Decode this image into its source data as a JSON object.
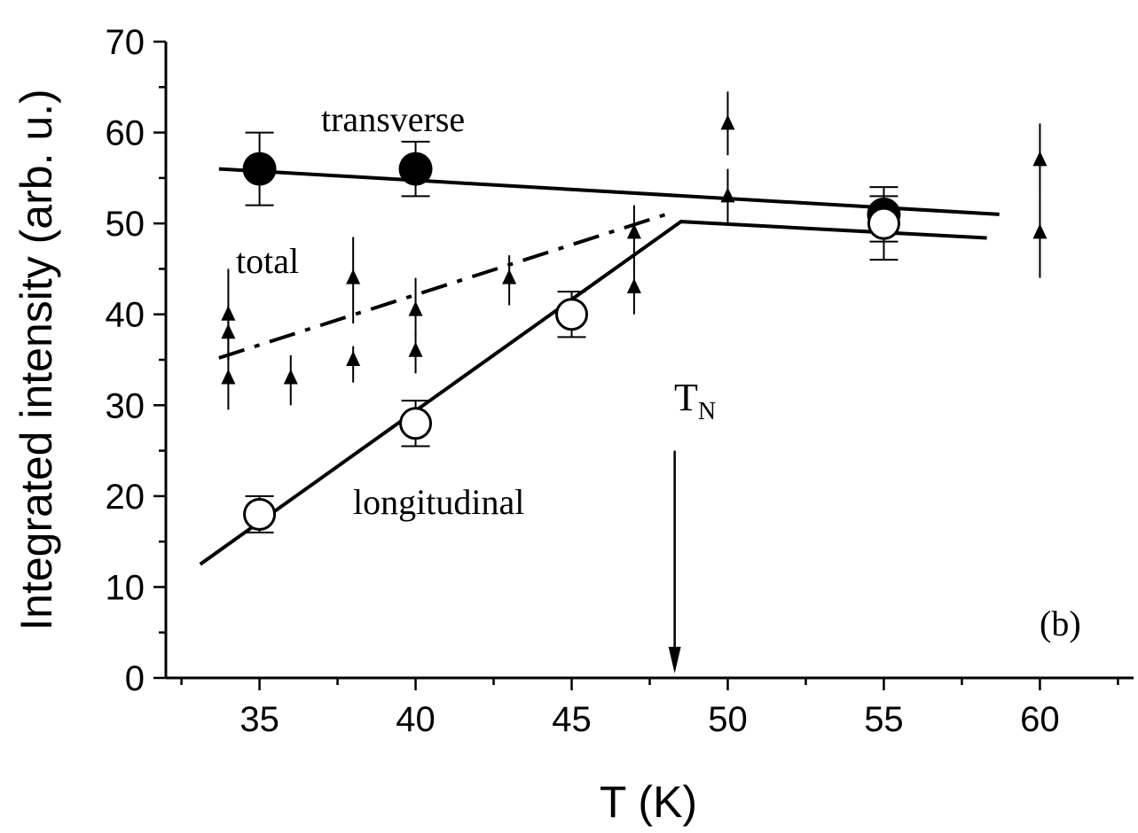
{
  "chart_data": {
    "type": "scatter",
    "xlabel": "T (K)",
    "ylabel": "Integrated intensity (arb. u.)",
    "xlim": [
      32,
      63
    ],
    "ylim": [
      0,
      70
    ],
    "x_ticks": [
      35,
      40,
      45,
      50,
      55,
      60
    ],
    "y_ticks": [
      0,
      10,
      20,
      30,
      40,
      50,
      60,
      70
    ],
    "panel_label": "(b)",
    "annotations": {
      "transverse": "transverse",
      "total": "total",
      "longitudinal": "longitudinal",
      "tn_main": "T",
      "tn_sub": "N"
    },
    "tn_arrow": {
      "x": 48.3,
      "y_from": 25,
      "y_to": 0.5
    },
    "series": [
      {
        "marker": "filled-circle",
        "points": [
          {
            "x": 35,
            "y": 56,
            "err_low": 52,
            "err_high": 60
          },
          {
            "x": 40,
            "y": 56,
            "err_low": 53,
            "err_high": 59
          },
          {
            "x": 55,
            "y": 51,
            "err_low": 48,
            "err_high": 54
          }
        ]
      },
      {
        "marker": "open-circle",
        "points": [
          {
            "x": 35,
            "y": 18,
            "err_low": 16,
            "err_high": 20
          },
          {
            "x": 40,
            "y": 28,
            "err_low": 25.5,
            "err_high": 30.5
          },
          {
            "x": 45,
            "y": 40,
            "err_low": 37.5,
            "err_high": 42.5
          },
          {
            "x": 55,
            "y": 50,
            "err_low": 46,
            "err_high": 53
          }
        ]
      },
      {
        "marker": "filled-triangle",
        "points": [
          {
            "x": 34,
            "y": 33,
            "err_low": 29.5,
            "err_high": 36
          },
          {
            "x": 34,
            "y": 38,
            "err_low": 35,
            "err_high": 41
          },
          {
            "x": 34,
            "y": 40,
            "err_low": 35,
            "err_high": 45
          },
          {
            "x": 36,
            "y": 33,
            "err_low": 30,
            "err_high": 35.5
          },
          {
            "x": 38,
            "y": 35,
            "err_low": 32.5,
            "err_high": 36.5
          },
          {
            "x": 38,
            "y": 44,
            "err_low": 39,
            "err_high": 48.5
          },
          {
            "x": 40,
            "y": 36,
            "err_low": 33.5,
            "err_high": 38
          },
          {
            "x": 40,
            "y": 40.5,
            "err_low": 37.5,
            "err_high": 44
          },
          {
            "x": 43,
            "y": 44,
            "err_low": 41,
            "err_high": 46.5
          },
          {
            "x": 47,
            "y": 43,
            "err_low": 40,
            "err_high": 46
          },
          {
            "x": 47,
            "y": 49,
            "err_low": 46,
            "err_high": 52
          },
          {
            "x": 50,
            "y": 53,
            "err_low": 50,
            "err_high": 56
          },
          {
            "x": 50,
            "y": 61,
            "err_low": 57.5,
            "err_high": 64.5
          },
          {
            "x": 60,
            "y": 49,
            "err_low": 44,
            "err_high": 53
          },
          {
            "x": 60,
            "y": 57,
            "err_low": 53,
            "err_high": 61
          }
        ]
      }
    ],
    "fit_lines": [
      {
        "style": "solid",
        "points": [
          [
            33.7,
            56
          ],
          [
            58.7,
            51
          ]
        ]
      },
      {
        "style": "solid",
        "points": [
          [
            33.1,
            12.5
          ],
          [
            48.5,
            50.2
          ],
          [
            58.3,
            48.4
          ]
        ]
      },
      {
        "style": "dashdot",
        "points": [
          [
            33.7,
            35.2
          ],
          [
            48.3,
            51.3
          ]
        ]
      }
    ]
  }
}
